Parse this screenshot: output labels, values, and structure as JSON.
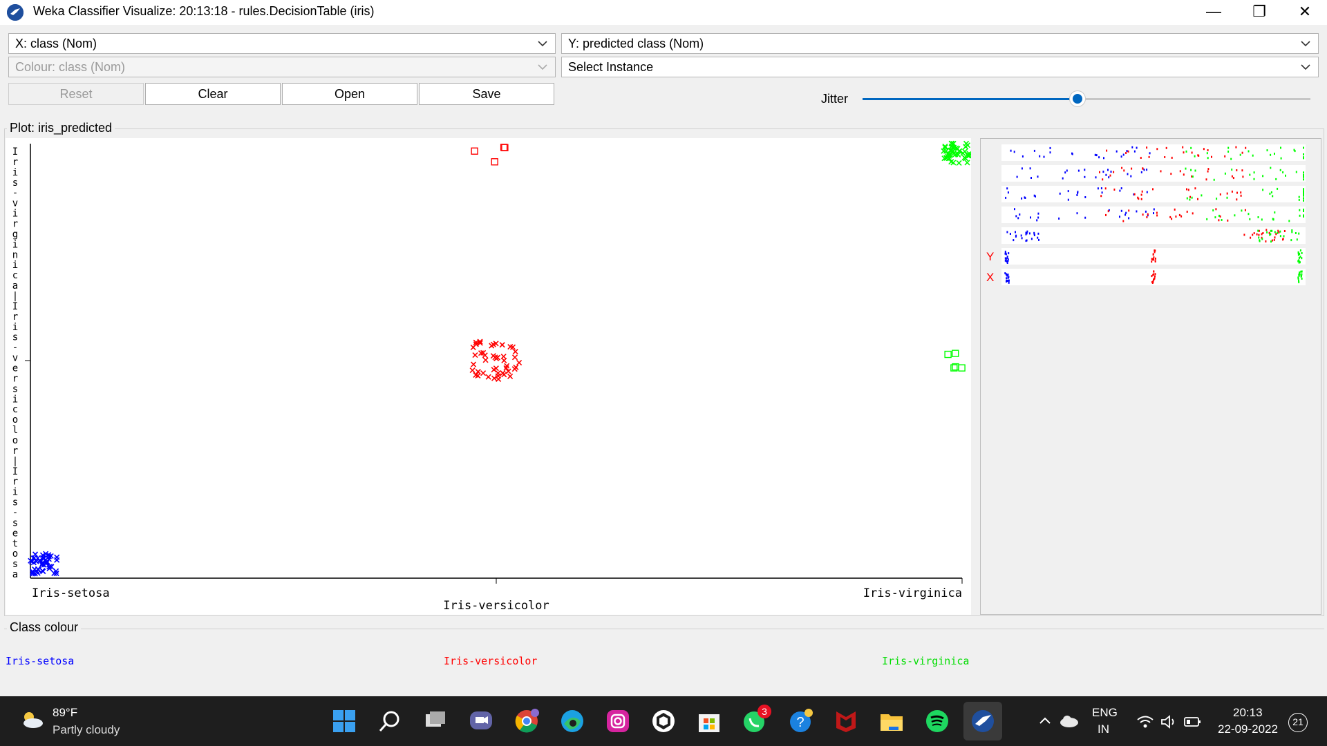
{
  "window": {
    "title": "Weka Classifier Visualize: 20:13:18 - rules.DecisionTable (iris)",
    "minimize": "—",
    "restore": "❐",
    "close": "✕"
  },
  "controls": {
    "x_axis": "X: class (Nom)",
    "y_axis": "Y: predicted class (Nom)",
    "colour": "Colour: class (Nom)",
    "select_instance": "Select Instance",
    "reset": "Reset",
    "clear": "Clear",
    "open": "Open",
    "save": "Save",
    "jitter_label": "Jitter",
    "jitter_value": 0.48
  },
  "plot": {
    "caption": "Plot: iris_predicted",
    "y_axis_text": "Iris-virginica | Iris-versicolor | Iris-setosa",
    "x_labels": [
      "Iris-setosa",
      "Iris-versicolor",
      "Iris-virginica"
    ],
    "y_labels": [
      "Iris-setosa",
      "Iris-versicolor",
      "Iris-virginica"
    ],
    "colors": {
      "setosa": "#0000ff",
      "versicolor": "#ff0000",
      "virginica": "#00ff00"
    }
  },
  "chart_data": {
    "type": "scatter",
    "xlabel": "class",
    "ylabel": "predicted class",
    "categories": [
      "Iris-setosa",
      "Iris-versicolor",
      "Iris-virginica"
    ],
    "series": [
      {
        "name": "Iris-setosa",
        "x": "Iris-setosa",
        "y": "Iris-setosa",
        "correct": 50,
        "incorrect": 0
      },
      {
        "name": "Iris-versicolor",
        "x": "Iris-versicolor",
        "y": "Iris-versicolor",
        "correct": 46,
        "incorrect": 4,
        "incorrect_predicted": "Iris-virginica"
      },
      {
        "name": "Iris-virginica",
        "x": "Iris-virginica",
        "y": "Iris-virginica",
        "correct": 45,
        "incorrect": 5,
        "incorrect_predicted": "Iris-versicolor"
      }
    ]
  },
  "matrix": {
    "y_label": "Y",
    "x_label": "X"
  },
  "legend": {
    "caption": "Class colour",
    "items": [
      "Iris-setosa",
      "Iris-versicolor",
      "Iris-virginica"
    ]
  },
  "taskbar": {
    "weather_temp": "89°F",
    "weather_desc": "Partly cloudy",
    "lang_top": "ENG",
    "lang_bottom": "IN",
    "time": "20:13",
    "date": "22-09-2022",
    "notif_count": "21",
    "whatsapp_badge": "3"
  }
}
